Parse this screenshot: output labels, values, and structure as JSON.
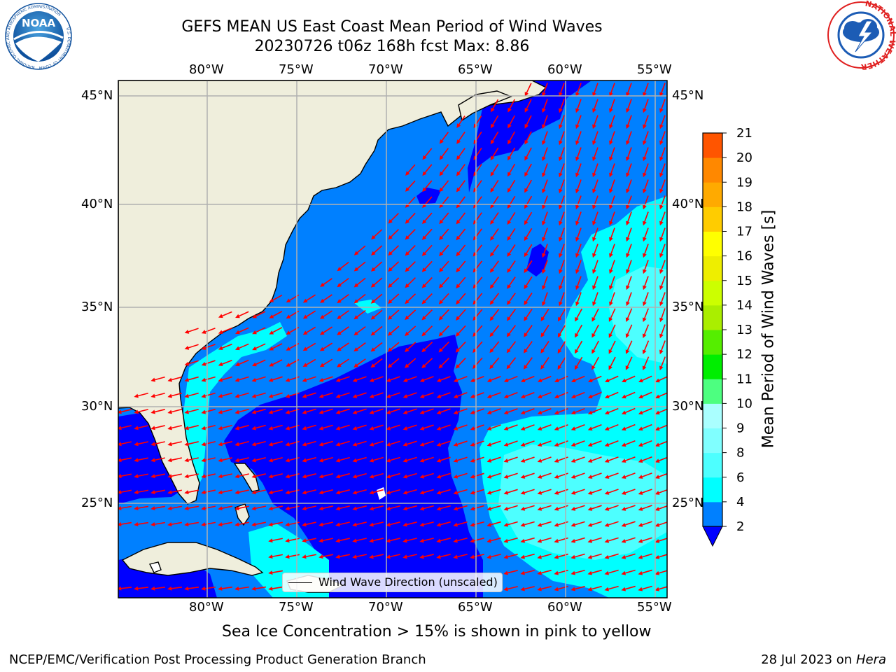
{
  "title_line1": "GEFS MEAN US East Coast Mean Period of Wind Waves",
  "title_line2": "20230726 t06z 168h fcst   Max: 8.86",
  "map": {
    "lon_ticks": [
      "80°W",
      "75°W",
      "70°W",
      "65°W",
      "60°W",
      "55°W"
    ],
    "lat_ticks": [
      "45°N",
      "40°N",
      "35°N",
      "30°N",
      "25°N"
    ],
    "extent": {
      "lon_min": -85,
      "lon_max": -54.5,
      "lat_min": 20.5,
      "lat_max": 45.8
    },
    "colors": {
      "land": "#efeedc",
      "deep_blue": "#0000ff",
      "blue": "#0080ff",
      "cyan": "#00ffff",
      "light_cyan": "#4dffff",
      "arrow": "#ff0000",
      "grid": "#b0b0b0"
    }
  },
  "colorbar": {
    "label": "Mean Period of Wind Waves [s]",
    "ticks": [
      "2",
      "4",
      "6",
      "8",
      "9",
      "10",
      "11",
      "12",
      "13",
      "14",
      "15",
      "16",
      "17",
      "18",
      "19",
      "20",
      "21"
    ],
    "colors": [
      "#0080ff",
      "#00ffff",
      "#4dffff",
      "#80ffff",
      "#aaffff",
      "#4dff80",
      "#00ee00",
      "#55ee00",
      "#aaee00",
      "#ccff00",
      "#eeee00",
      "#ffff00",
      "#ffcc00",
      "#ffaa00",
      "#ff8800",
      "#ff5500",
      "#ff2200",
      "#ff0000"
    ],
    "under_color": "#0000ff"
  },
  "legend": {
    "label": "Wind Wave Direction (unscaled)"
  },
  "note": "Sea Ice Concentration > 15% is shown in pink to yellow",
  "footer": {
    "left": "NCEP/EMC/Verification Post Processing Product Generation Branch",
    "right_date": "28 Jul 2023 on ",
    "right_machine": "Hera"
  },
  "logos": {
    "left": "NOAA",
    "left_ring": "NATIONAL OCEANIC AND ATMOSPHERIC ADMINISTRATION",
    "left_ring_bottom": "U.S. DEPARTMENT OF COMMERCE",
    "right_ring": "NATIONAL WEATHER SERVICE"
  }
}
